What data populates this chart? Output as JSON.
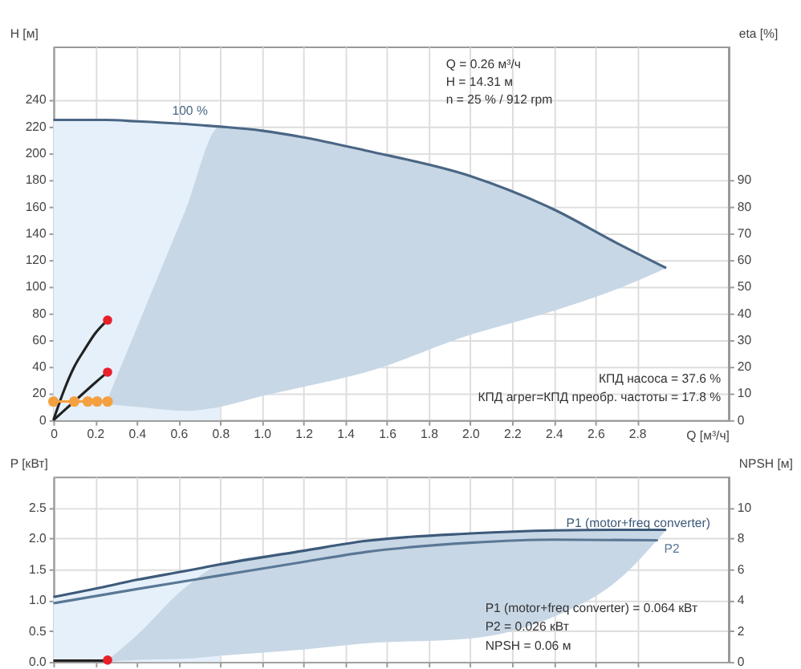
{
  "chart_data": [
    {
      "type": "line",
      "xlabel": "Q [м³/ч]",
      "ylabel": "H [м]",
      "y2label": "eta [%]",
      "xlim": [
        0,
        3.24
      ],
      "ylim": [
        0,
        280
      ],
      "xticks": [
        0,
        0.2,
        0.4,
        0.6,
        0.8,
        {
          "value": 1,
          "label": "1.0"
        },
        1.2,
        1.4,
        1.6,
        1.8,
        {
          "value": 2,
          "label": "2.0"
        },
        2.2,
        2.4,
        2.6,
        2.8
      ],
      "yticks": [
        0,
        20,
        40,
        60,
        80,
        100,
        120,
        140,
        160,
        180,
        200,
        220,
        240
      ],
      "y2lim": [
        0,
        140
      ],
      "y2ticks": [
        0,
        10,
        20,
        30,
        40,
        50,
        60,
        70,
        80,
        90
      ],
      "grid": true,
      "annotations": [
        "Q = 0.26 м³/ч",
        "H = 14.31 м",
        "n = 25 % / 912 rpm",
        "КПД насоса = 37.6 %",
        "КПД агрег=КПД преобр. частоты = 17.8 %"
      ],
      "series": [
        {
          "type": "area",
          "color": "#e6f0fa",
          "x": [
            0,
            0.25,
            0.8
          ],
          "values": [
            225,
            225,
            220
          ]
        },
        {
          "name": "100 %",
          "color": "#4a6684",
          "x": [
            0,
            0.25,
            0.4,
            0.63,
            0.8,
            1.0,
            1.2,
            1.5,
            2.0,
            2.4,
            2.7,
            2.94
          ],
          "values": [
            225,
            225,
            224,
            222,
            220,
            217,
            212,
            202,
            183,
            158,
            133,
            114
          ],
          "lower": [
            null,
            12,
            10,
            7,
            10,
            18,
            25,
            36,
            64,
            82,
            98,
            114
          ],
          "upper": [
            null,
            12,
            69,
            156,
            220,
            217,
            212,
            202,
            183,
            158,
            133,
            114
          ]
        },
        {
          "color": "#222222",
          "x": [
            0,
            0.05,
            0.1,
            0.15,
            0.2,
            0.26
          ],
          "values": [
            0,
            22,
            40,
            53,
            65,
            75
          ]
        },
        {
          "color": "#222222",
          "x": [
            0,
            0.1,
            0.2,
            0.26
          ],
          "values": [
            0,
            14,
            28,
            36
          ]
        },
        {
          "color": "#f5a040",
          "marker": "circle",
          "x": [
            0,
            0.1,
            0.165,
            0.21,
            0.26
          ],
          "values": [
            14,
            14,
            14,
            14,
            14
          ]
        },
        {
          "type": "scatter",
          "color": "#e8202a",
          "x": [
            0.26,
            0.26
          ],
          "values": [
            75,
            36
          ]
        }
      ]
    },
    {
      "type": "line",
      "ylabel": "P [кВт]",
      "y2label": "NPSH [м]",
      "xlim": [
        0,
        3.24
      ],
      "ylim": [
        0,
        3
      ],
      "tick_labels": "y",
      "xticks": [
        0,
        0.2,
        0.4,
        0.6,
        0.8,
        1,
        1.2,
        1.4,
        1.6,
        1.8,
        2,
        2.2,
        2.4,
        2.6,
        2.8
      ],
      "yticks": [
        {
          "value": 0,
          "label": "0.0"
        },
        0.5,
        {
          "value": 1,
          "label": "1.0"
        },
        1.5,
        {
          "value": 2,
          "label": "2.0"
        },
        2.5
      ],
      "y2lim": [
        0,
        12
      ],
      "y2ticks": [
        0,
        2,
        4,
        6,
        8,
        10
      ],
      "grid": true,
      "annotations": [
        "P1 (motor+freq converter) = 0.064 кВт",
        "P2 = 0.026 кВт",
        "NPSH = 0.06 м"
      ],
      "series": [
        {
          "type": "area",
          "color": "#e6f0fa",
          "x": [
            0,
            0.25,
            0.8
          ],
          "values": [
            1.05,
            1.22,
            1.58
          ]
        },
        {
          "name": "P1 (motor+freq converter)",
          "color": "#3d5a7a",
          "x": [
            0,
            0.25,
            0.4,
            0.63,
            0.8,
            1.2,
            1.5,
            2.0,
            2.4,
            2.7,
            2.94
          ],
          "values": [
            1.05,
            1.22,
            1.33,
            1.47,
            1.58,
            1.8,
            1.96,
            2.08,
            2.13,
            2.14,
            2.14
          ],
          "lower": [
            null,
            0,
            0.03,
            0.05,
            0.1,
            0.2,
            0.3,
            0.38,
            0.73,
            1.3,
            2.14
          ],
          "upper": [
            null,
            0,
            0.43,
            1.2,
            1.58,
            1.8,
            1.96,
            2.08,
            2.13,
            2.14,
            2.14
          ]
        },
        {
          "name": "P2",
          "color": "#5a7896",
          "x": [
            0,
            0.4,
            0.8,
            1.2,
            1.5,
            2.0,
            2.4,
            2.9
          ],
          "values": [
            0.95,
            1.18,
            1.4,
            1.62,
            1.78,
            1.93,
            1.98,
            1.97
          ]
        },
        {
          "color": "#222222",
          "x": [
            0,
            0.26
          ],
          "values": [
            0.02,
            0.02
          ]
        },
        {
          "type": "scatter",
          "color": "#e8202a",
          "x": [
            0.26
          ],
          "values": [
            0.03
          ]
        }
      ]
    }
  ]
}
